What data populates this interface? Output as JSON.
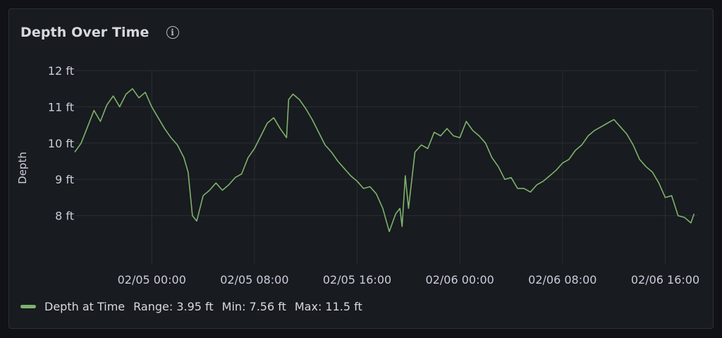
{
  "panel": {
    "title": "Depth Over Time",
    "info_icon": "info-circle-icon"
  },
  "legend": {
    "series_name": "Depth at Time",
    "range": "Range: 3.95 ft",
    "min": "Min: 7.56 ft",
    "max": "Max: 11.5 ft"
  },
  "colors": {
    "series": "#7eb26d",
    "grid": "#2a2d31",
    "panel_bg": "#181b1f",
    "page_bg": "#111217",
    "text": "#ccccdc"
  },
  "chart_data": {
    "type": "line",
    "ylabel": "Depth",
    "xlabel": "",
    "y_unit": "ft",
    "ylim": [
      7.0,
      12.0
    ],
    "y_ticks": [
      {
        "value": 8,
        "label": "8 ft"
      },
      {
        "value": 9,
        "label": "9 ft"
      },
      {
        "value": 10,
        "label": "10 ft"
      },
      {
        "value": 11,
        "label": "11 ft"
      },
      {
        "value": 12,
        "label": "12 ft"
      }
    ],
    "xlim": [
      "2025-02-04T18:00",
      "2025-02-06T18:30"
    ],
    "x_ticks": [
      {
        "value": "2025-02-05T00:00",
        "label": "02/05 00:00"
      },
      {
        "value": "2025-02-05T08:00",
        "label": "02/05 08:00"
      },
      {
        "value": "2025-02-05T16:00",
        "label": "02/05 16:00"
      },
      {
        "value": "2025-02-06T00:00",
        "label": "02/06 00:00"
      },
      {
        "value": "2025-02-06T08:00",
        "label": "02/06 08:00"
      },
      {
        "value": "2025-02-06T16:00",
        "label": "02/06 16:00"
      }
    ],
    "grid": true,
    "legend_position": "bottom-left",
    "series": [
      {
        "name": "Depth at Time",
        "color": "#7eb26d",
        "x": [
          "2025-02-04T18:00",
          "2025-02-04T18:30",
          "2025-02-04T19:00",
          "2025-02-04T19:30",
          "2025-02-04T20:00",
          "2025-02-04T20:30",
          "2025-02-04T21:00",
          "2025-02-04T21:30",
          "2025-02-04T22:00",
          "2025-02-04T22:30",
          "2025-02-04T23:00",
          "2025-02-04T23:30",
          "2025-02-05T00:00",
          "2025-02-05T00:30",
          "2025-02-05T01:00",
          "2025-02-05T01:30",
          "2025-02-05T02:00",
          "2025-02-05T02:30",
          "2025-02-05T02:50",
          "2025-02-05T03:10",
          "2025-02-05T03:30",
          "2025-02-05T04:00",
          "2025-02-05T04:30",
          "2025-02-05T05:00",
          "2025-02-05T05:30",
          "2025-02-05T06:00",
          "2025-02-05T06:30",
          "2025-02-05T07:00",
          "2025-02-05T07:30",
          "2025-02-05T08:00",
          "2025-02-05T08:30",
          "2025-02-05T09:00",
          "2025-02-05T09:30",
          "2025-02-05T10:00",
          "2025-02-05T10:30",
          "2025-02-05T10:40",
          "2025-02-05T11:00",
          "2025-02-05T11:30",
          "2025-02-05T12:00",
          "2025-02-05T12:30",
          "2025-02-05T13:00",
          "2025-02-05T13:30",
          "2025-02-05T14:00",
          "2025-02-05T14:30",
          "2025-02-05T15:00",
          "2025-02-05T15:30",
          "2025-02-05T16:00",
          "2025-02-05T16:30",
          "2025-02-05T17:00",
          "2025-02-05T17:30",
          "2025-02-05T18:00",
          "2025-02-05T18:30",
          "2025-02-05T19:00",
          "2025-02-05T19:20",
          "2025-02-05T19:30",
          "2025-02-05T19:45",
          "2025-02-05T20:00",
          "2025-02-05T20:30",
          "2025-02-05T21:00",
          "2025-02-05T21:30",
          "2025-02-05T22:00",
          "2025-02-05T22:30",
          "2025-02-05T23:00",
          "2025-02-05T23:30",
          "2025-02-06T00:00",
          "2025-02-06T00:30",
          "2025-02-06T01:00",
          "2025-02-06T01:30",
          "2025-02-06T02:00",
          "2025-02-06T02:30",
          "2025-02-06T03:00",
          "2025-02-06T03:30",
          "2025-02-06T04:00",
          "2025-02-06T04:30",
          "2025-02-06T05:00",
          "2025-02-06T05:30",
          "2025-02-06T06:00",
          "2025-02-06T06:30",
          "2025-02-06T07:00",
          "2025-02-06T07:30",
          "2025-02-06T08:00",
          "2025-02-06T08:30",
          "2025-02-06T09:00",
          "2025-02-06T09:30",
          "2025-02-06T10:00",
          "2025-02-06T10:30",
          "2025-02-06T11:00",
          "2025-02-06T11:30",
          "2025-02-06T12:00",
          "2025-02-06T12:30",
          "2025-02-06T13:00",
          "2025-02-06T13:30",
          "2025-02-06T14:00",
          "2025-02-06T14:30",
          "2025-02-06T15:00",
          "2025-02-06T15:30",
          "2025-02-06T16:00",
          "2025-02-06T16:30",
          "2025-02-06T17:00",
          "2025-02-06T17:30",
          "2025-02-06T18:00",
          "2025-02-06T18:15"
        ],
        "y": [
          9.75,
          10.0,
          10.45,
          10.9,
          10.6,
          11.05,
          11.3,
          11.0,
          11.35,
          11.5,
          11.25,
          11.4,
          11.0,
          10.7,
          10.4,
          10.15,
          9.95,
          9.6,
          9.2,
          8.0,
          7.85,
          8.55,
          8.7,
          8.9,
          8.7,
          8.85,
          9.05,
          9.15,
          9.6,
          9.85,
          10.2,
          10.55,
          10.7,
          10.4,
          10.15,
          11.2,
          11.35,
          11.2,
          10.95,
          10.65,
          10.3,
          9.95,
          9.75,
          9.5,
          9.3,
          9.1,
          8.95,
          8.75,
          8.8,
          8.6,
          8.2,
          7.56,
          8.05,
          8.2,
          7.7,
          9.1,
          8.2,
          9.75,
          9.95,
          9.85,
          10.3,
          10.2,
          10.4,
          10.2,
          10.15,
          10.6,
          10.35,
          10.2,
          10.0,
          9.6,
          9.35,
          9.0,
          9.05,
          8.75,
          8.75,
          8.65,
          8.85,
          8.95,
          9.1,
          9.25,
          9.45,
          9.55,
          9.8,
          9.95,
          10.2,
          10.35,
          10.45,
          10.55,
          10.65,
          10.45,
          10.25,
          9.95,
          9.55,
          9.35,
          9.2,
          8.9,
          8.5,
          8.55,
          8.0,
          7.95,
          7.8,
          8.05
        ]
      }
    ]
  }
}
